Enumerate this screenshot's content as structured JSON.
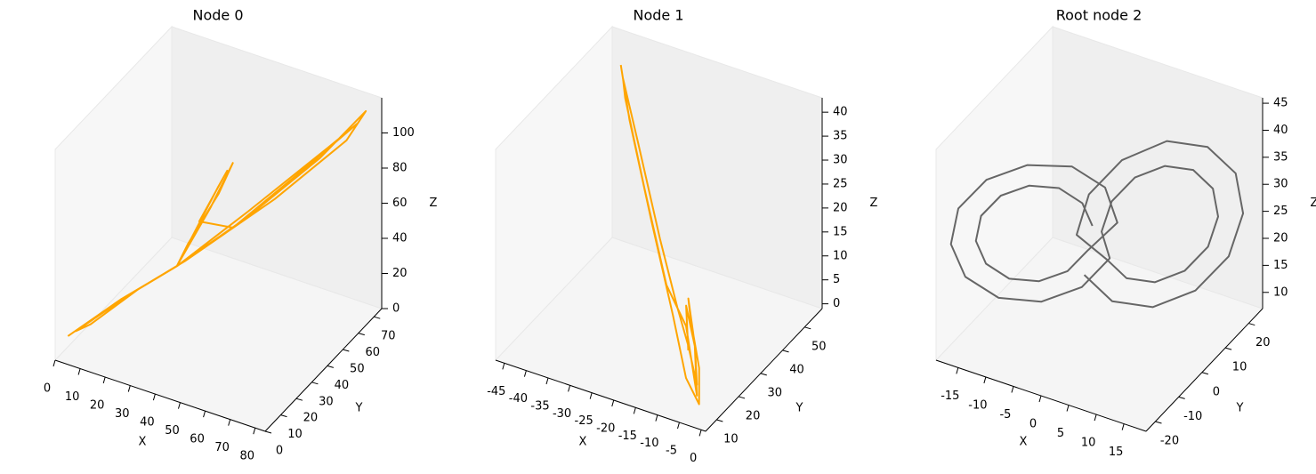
{
  "chart_data": [
    {
      "type": "line3d",
      "title": "Node 0",
      "color": "#ffa500",
      "xlabel": "X",
      "ylabel": "Y",
      "zlabel": "Z",
      "x": [
        2,
        15,
        30,
        36,
        40,
        38,
        32,
        30,
        50,
        70,
        82,
        78,
        58,
        32,
        20,
        8,
        4,
        18,
        30,
        37,
        39,
        34,
        45,
        66,
        80,
        72,
        50,
        30
      ],
      "y": [
        5,
        18,
        30,
        42,
        50,
        44,
        34,
        30,
        44,
        58,
        68,
        62,
        48,
        32,
        22,
        10,
        7,
        20,
        30,
        45,
        48,
        38,
        42,
        56,
        66,
        60,
        44,
        30
      ],
      "z": [
        10,
        25,
        40,
        65,
        85,
        72,
        50,
        40,
        65,
        95,
        118,
        105,
        75,
        42,
        30,
        15,
        12,
        28,
        40,
        74,
        82,
        60,
        58,
        90,
        112,
        100,
        68,
        40
      ],
      "xlim": [
        0,
        84
      ],
      "ylim": [
        0,
        75
      ],
      "zlim": [
        0,
        120
      ],
      "xticks": [
        0,
        10,
        20,
        30,
        40,
        50,
        60,
        70,
        80
      ],
      "yticks": [
        0,
        10,
        20,
        30,
        40,
        50,
        60,
        70
      ],
      "zticks": [
        0,
        20,
        40,
        60,
        80,
        100
      ]
    },
    {
      "type": "line3d",
      "title": "Node 1",
      "color": "#ffa500",
      "xlabel": "X",
      "ylabel": "Y",
      "zlabel": "Z",
      "x": [
        -40,
        -35,
        -25,
        -15,
        -8,
        -3,
        -5,
        -10,
        -12,
        -8,
        -5,
        -9,
        -14,
        -22,
        -32,
        -39,
        -37,
        -28,
        -18,
        -11,
        -7,
        -4,
        -7,
        -12,
        -9
      ],
      "y": [
        48,
        42,
        32,
        22,
        14,
        10,
        14,
        20,
        23,
        18,
        13,
        17,
        22,
        30,
        40,
        47,
        44,
        35,
        25,
        20,
        15,
        11,
        16,
        22,
        17
      ],
      "z": [
        42,
        35,
        22,
        10,
        3,
        1,
        6,
        12,
        14,
        8,
        3,
        8,
        12,
        20,
        32,
        40,
        38,
        26,
        14,
        10,
        5,
        2,
        9,
        13,
        7
      ],
      "xlim": [
        -47,
        1
      ],
      "ylim": [
        5,
        58
      ],
      "zlim": [
        -1,
        43
      ],
      "xticks": [
        -45,
        -40,
        -35,
        -30,
        -25,
        -20,
        -15,
        -10,
        -5,
        0
      ],
      "yticks": [
        10,
        20,
        30,
        40,
        50
      ],
      "zticks": [
        0,
        5,
        10,
        15,
        20,
        25,
        30,
        35,
        40
      ]
    },
    {
      "type": "line3d",
      "title": "Root node 2",
      "color": "#666666",
      "xlabel": "X",
      "ylabel": "Y",
      "zlabel": "Z",
      "x": [
        -1,
        -1.9,
        -4.5,
        -8,
        -11.5,
        -14.1,
        -15,
        -14.1,
        -11.5,
        -8,
        -4.5,
        -1.9,
        2,
        0.66,
        -3,
        -8,
        -13,
        -16.7,
        -18,
        -16.7,
        -13,
        -8,
        -3,
        0.66,
        1,
        1.9,
        4.5,
        8,
        11.5,
        14.1,
        15,
        14.1,
        11.5,
        8,
        4.5,
        1.9,
        -2,
        -0.66,
        3,
        8,
        13,
        16.7,
        18,
        16.7,
        13,
        8,
        3,
        -0.66
      ],
      "y": [
        0.4,
        -1.8,
        -5.6,
        -10.1,
        -14,
        -16.3,
        -16.4,
        -14.2,
        -10.4,
        -5.9,
        -2,
        0.3,
        4,
        1.9,
        -3.6,
        -11,
        -16.6,
        -19.9,
        -20,
        -16.9,
        -11.4,
        -5,
        0.6,
        3.9,
        -0.4,
        1.8,
        5.6,
        10.1,
        14,
        16.3,
        16.4,
        14.2,
        10.4,
        5.9,
        2,
        -0.3,
        -4,
        -1.9,
        3.6,
        11,
        16.6,
        19.9,
        20,
        16.9,
        11.4,
        5,
        -0.6,
        -3.9
      ],
      "z": [
        27,
        31.9,
        35.5,
        36.8,
        35.5,
        31.9,
        27,
        22.1,
        18.5,
        17.2,
        18.5,
        22.1,
        27,
        34,
        39.1,
        41,
        39.1,
        34,
        27,
        20,
        14.9,
        13,
        14.9,
        20,
        27,
        31.9,
        35.5,
        36.8,
        35.5,
        31.9,
        27,
        22.1,
        18.5,
        17.2,
        18.5,
        22.1,
        27,
        34,
        39.1,
        41,
        39.1,
        34,
        27,
        20,
        14.9,
        13,
        14.9,
        20
      ],
      "xlim": [
        -19,
        19
      ],
      "ylim": [
        -24,
        26
      ],
      "zlim": [
        7,
        46
      ],
      "xticks": [
        -15,
        -10,
        -5,
        0,
        5,
        10,
        15
      ],
      "yticks": [
        -20,
        -10,
        0,
        10,
        20
      ],
      "zticks": [
        10,
        15,
        20,
        25,
        30,
        35,
        40,
        45
      ]
    }
  ]
}
